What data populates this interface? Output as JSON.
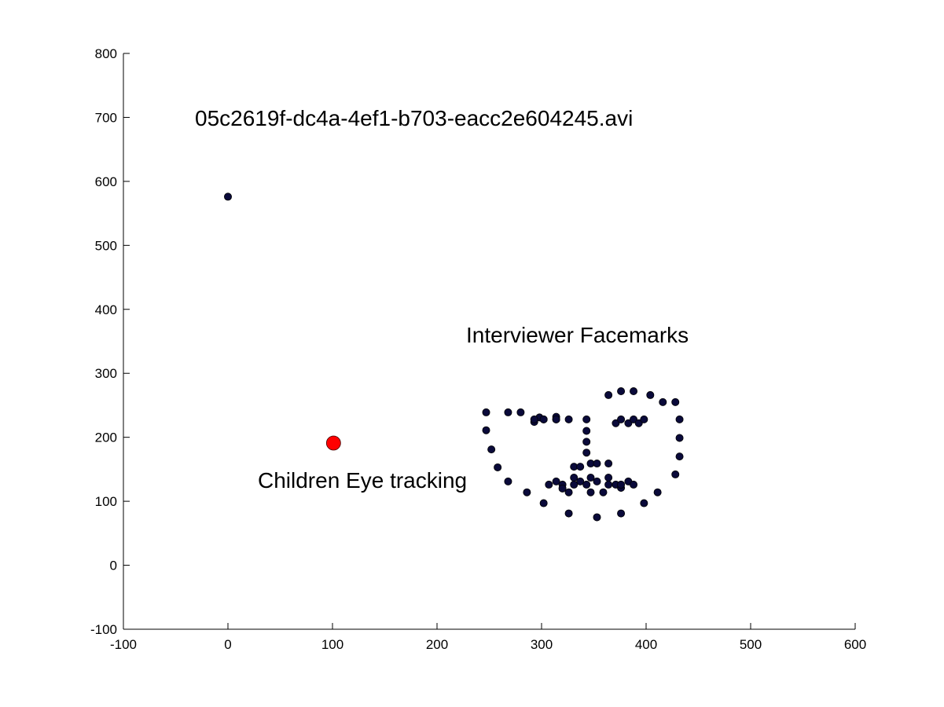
{
  "chart_data": {
    "type": "scatter",
    "title": "05c2619f-dc4a-4ef1-b703-eacc2e604245.avi",
    "xlabel": "",
    "ylabel": "",
    "xlim": [
      -100,
      600
    ],
    "ylim": [
      -100,
      800
    ],
    "x_ticks": [
      "-100",
      "0",
      "100",
      "200",
      "300",
      "400",
      "500",
      "600"
    ],
    "y_ticks": [
      "-100",
      "0",
      "100",
      "200",
      "300",
      "400",
      "500",
      "600",
      "700",
      "800"
    ],
    "grid": false,
    "annotations": [
      {
        "text": "Interviewer Facemarks",
        "x": 227,
        "y": 355
      },
      {
        "text": "Children Eye tracking",
        "x": 29,
        "y": 128
      }
    ],
    "series": [
      {
        "color": "#0a0a3a",
        "marker": "dot",
        "points": [
          [
            0,
            576
          ],
          [
            247,
            239
          ],
          [
            247,
            211
          ],
          [
            252,
            181
          ],
          [
            258,
            153
          ],
          [
            268,
            131
          ],
          [
            286,
            114
          ],
          [
            302,
            97
          ],
          [
            326,
            81
          ],
          [
            353,
            75
          ],
          [
            376,
            81
          ],
          [
            398,
            97
          ],
          [
            411,
            114
          ],
          [
            428,
            142
          ],
          [
            432,
            170
          ],
          [
            432,
            199
          ],
          [
            432,
            228
          ],
          [
            428,
            255
          ],
          [
            268,
            239
          ],
          [
            280,
            239
          ],
          [
            293,
            224
          ],
          [
            298,
            231
          ],
          [
            302,
            228
          ],
          [
            314,
            232
          ],
          [
            314,
            228
          ],
          [
            326,
            228
          ],
          [
            364,
            266
          ],
          [
            376,
            272
          ],
          [
            388,
            272
          ],
          [
            404,
            266
          ],
          [
            416,
            255
          ],
          [
            343,
            228
          ],
          [
            343,
            210
          ],
          [
            343,
            193
          ],
          [
            343,
            176
          ],
          [
            331,
            154
          ],
          [
            337,
            154
          ],
          [
            347,
            159
          ],
          [
            353,
            159
          ],
          [
            364,
            159
          ],
          [
            293,
            228
          ],
          [
            302,
            228
          ],
          [
            314,
            228
          ],
          [
            371,
            222
          ],
          [
            376,
            228
          ],
          [
            383,
            222
          ],
          [
            388,
            228
          ],
          [
            393,
            222
          ],
          [
            398,
            228
          ],
          [
            307,
            126
          ],
          [
            314,
            131
          ],
          [
            320,
            126
          ],
          [
            331,
            137
          ],
          [
            337,
            131
          ],
          [
            343,
            126
          ],
          [
            347,
            137
          ],
          [
            353,
            131
          ],
          [
            364,
            137
          ],
          [
            371,
            126
          ],
          [
            376,
            121
          ],
          [
            383,
            131
          ],
          [
            388,
            126
          ],
          [
            320,
            120
          ],
          [
            326,
            114
          ],
          [
            331,
            126
          ],
          [
            347,
            114
          ],
          [
            359,
            114
          ],
          [
            364,
            126
          ],
          [
            376,
            126
          ]
        ]
      },
      {
        "color": "#ff0000",
        "marker": "large-dot",
        "points": [
          [
            101,
            191
          ]
        ]
      }
    ]
  }
}
